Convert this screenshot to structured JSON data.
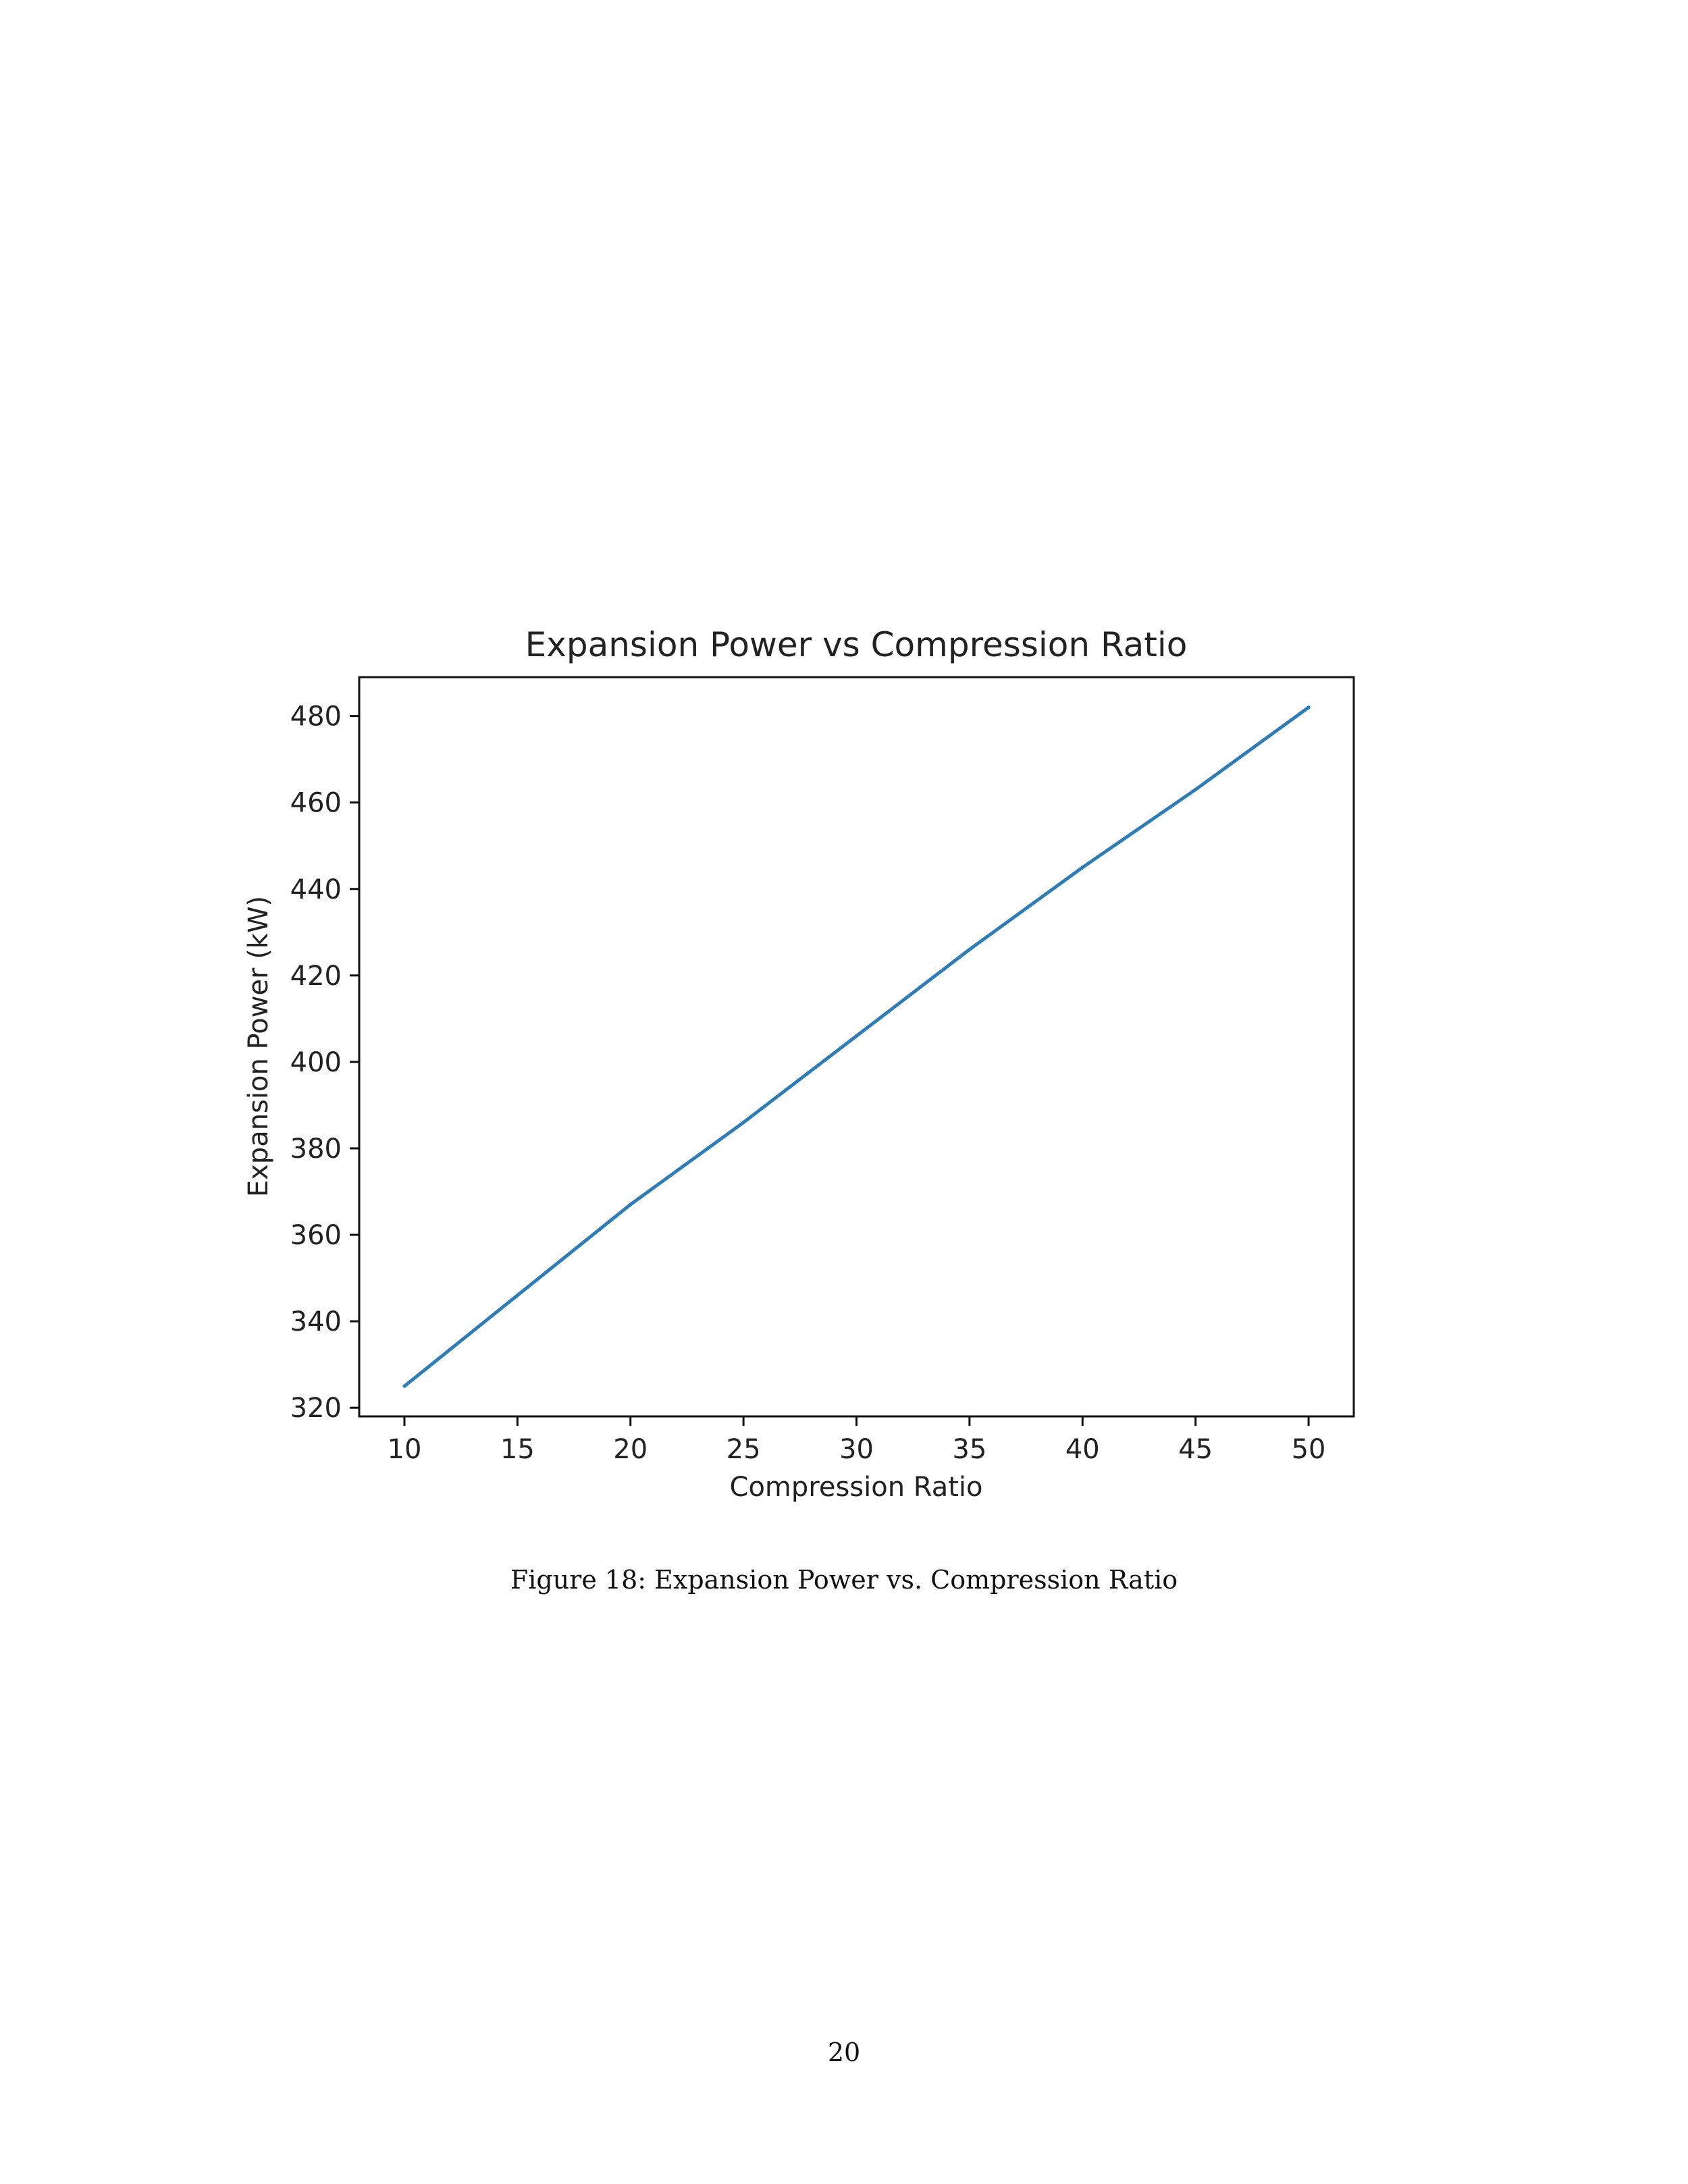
{
  "document": {
    "caption": "Figure 18: Expansion Power vs. Compression Ratio",
    "page_number": "20"
  },
  "chart_data": {
    "type": "line",
    "title": "Expansion Power vs Compression Ratio",
    "xlabel": "Compression Ratio",
    "ylabel": "Expansion Power (kW)",
    "xlim": [
      8,
      52
    ],
    "ylim": [
      318,
      489
    ],
    "x_ticks": [
      10,
      15,
      20,
      25,
      30,
      35,
      40,
      45,
      50
    ],
    "y_ticks": [
      320,
      340,
      360,
      380,
      400,
      420,
      440,
      460,
      480
    ],
    "grid": false,
    "legend": "none",
    "series": [
      {
        "color": "#2f7db6",
        "x": [
          10,
          15,
          20,
          25,
          30,
          35,
          40,
          45,
          50
        ],
        "y": [
          325,
          346,
          367,
          386,
          406,
          426,
          445,
          463,
          482
        ]
      }
    ]
  }
}
